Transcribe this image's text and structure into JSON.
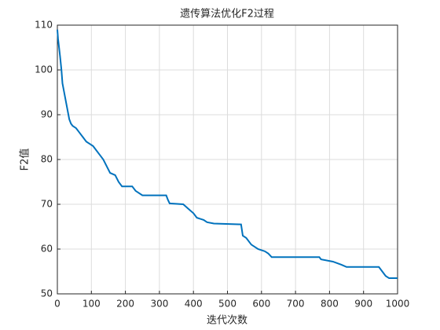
{
  "chart_data": {
    "type": "line",
    "title": "遗传算法优化F2过程",
    "xlabel": "迭代次数",
    "ylabel": "F2值",
    "x": [
      0,
      2,
      5,
      8,
      12,
      15,
      20,
      25,
      30,
      35,
      40,
      45,
      55,
      65,
      75,
      85,
      95,
      105,
      115,
      125,
      135,
      145,
      155,
      170,
      180,
      190,
      220,
      230,
      250,
      320,
      325,
      330,
      370,
      385,
      400,
      410,
      430,
      440,
      460,
      540,
      545,
      555,
      570,
      590,
      610,
      620,
      630,
      770,
      775,
      810,
      835,
      850,
      945,
      955,
      965,
      975,
      1000
    ],
    "series": [
      {
        "name": "F2",
        "color": "#0072bd",
        "values": [
          109,
          107,
          105,
          103,
          100,
          97,
          95,
          93,
          91,
          89,
          88,
          87.5,
          87,
          86,
          85,
          84,
          83.5,
          83,
          82,
          81,
          80,
          78.5,
          77,
          76.5,
          75,
          74,
          74,
          73,
          72,
          72,
          71,
          70.2,
          70,
          69,
          68,
          67,
          66.5,
          66,
          65.7,
          65.5,
          63,
          62.5,
          61,
          60,
          59.5,
          59,
          58.2,
          58.2,
          57.7,
          57.2,
          56.5,
          56,
          56,
          55,
          54,
          53.5,
          53.5
        ]
      }
    ],
    "xlim": [
      0,
      1000
    ],
    "xticks": [
      0,
      100,
      200,
      300,
      400,
      500,
      600,
      700,
      800,
      900,
      1000
    ],
    "ylim": [
      50,
      110
    ],
    "yticks": [
      50,
      60,
      70,
      80,
      90,
      100,
      110
    ],
    "grid": true
  }
}
